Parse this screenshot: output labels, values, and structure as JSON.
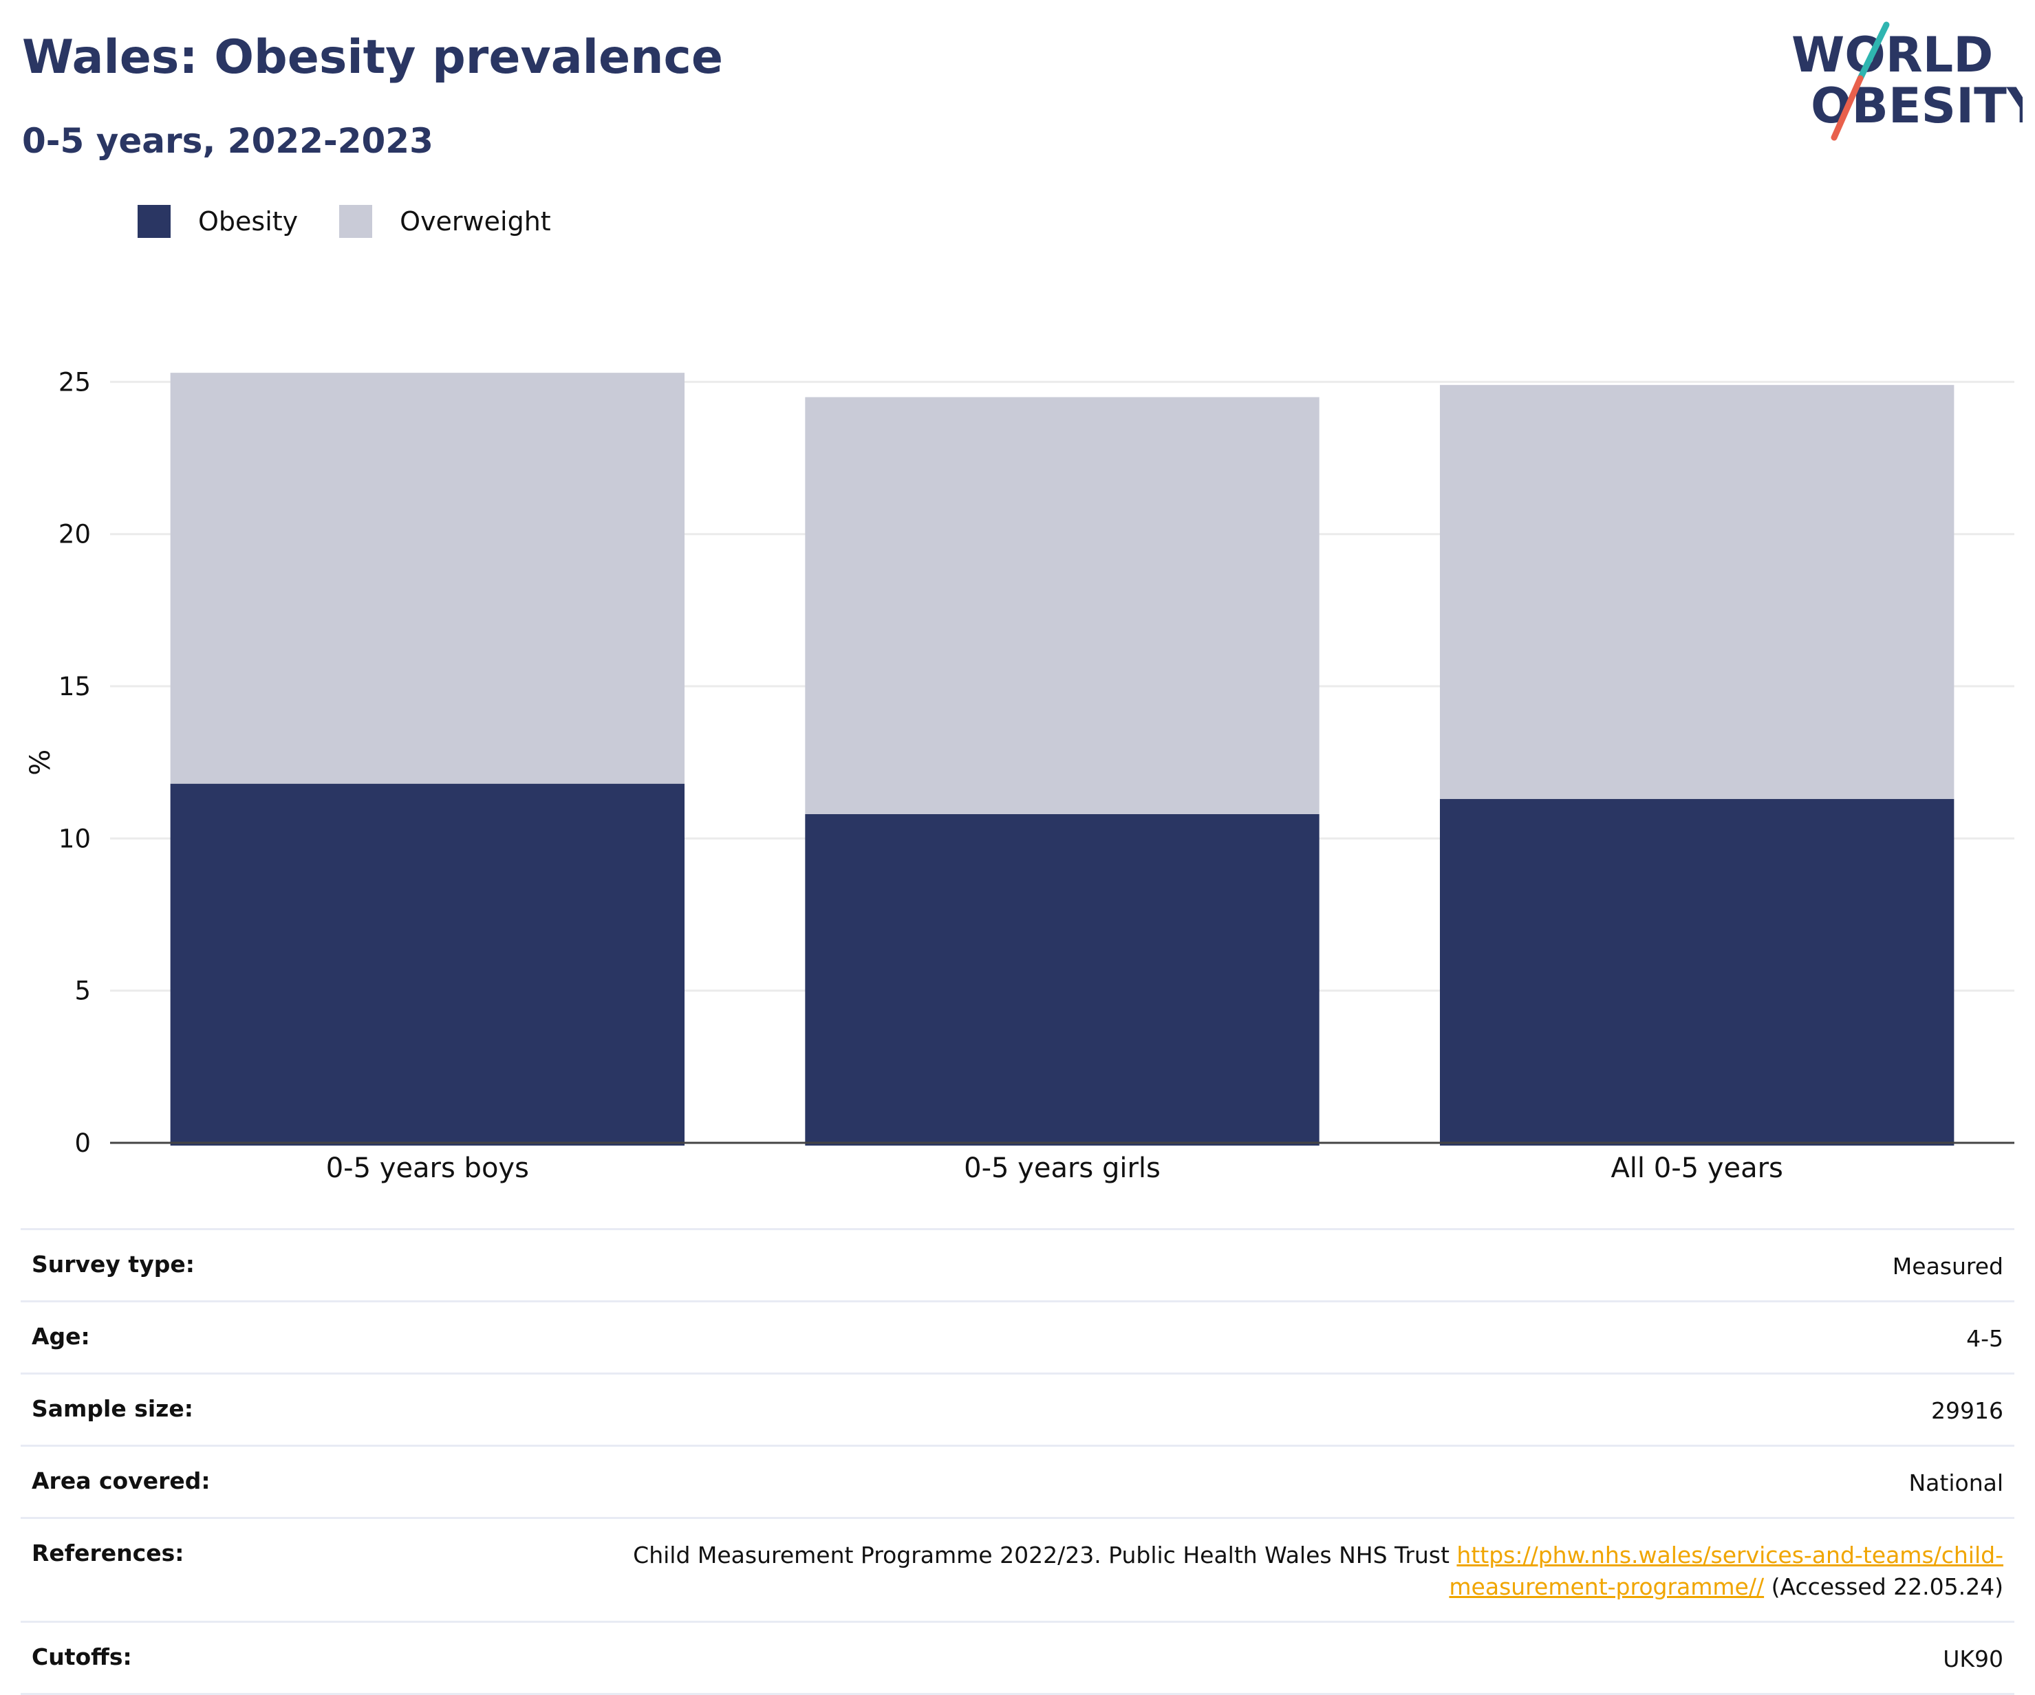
{
  "header": {
    "title": "Wales: Obesity prevalence",
    "subtitle": "0-5 years, 2022-2023"
  },
  "logo": {
    "line1": "WORLD",
    "line2": "OBESITY",
    "colors": {
      "text": "#2a3663",
      "slash_top": "#2fb5b0",
      "slash_bottom": "#e8604c"
    }
  },
  "legend": [
    {
      "label": "Obesity",
      "color": "#2a3663"
    },
    {
      "label": "Overweight",
      "color": "#c9cbd7"
    }
  ],
  "chart_data": {
    "type": "bar",
    "stacked": true,
    "categories": [
      "0-5 years boys",
      "0-5 years girls",
      "All 0-5 years"
    ],
    "series": [
      {
        "name": "Obesity",
        "values": [
          11.8,
          10.8,
          11.3
        ],
        "color": "#2a3663"
      },
      {
        "name": "Overweight",
        "values": [
          13.5,
          13.7,
          13.6
        ],
        "color": "#c9cbd7"
      }
    ],
    "ylabel": "%",
    "ylim": [
      0,
      25.8
    ],
    "yticks": [
      0,
      5,
      10,
      15,
      20,
      25
    ],
    "grid": true,
    "legend_position": "top-left"
  },
  "info": [
    {
      "label": "Survey type:",
      "value": "Measured"
    },
    {
      "label": "Age:",
      "value": "4-5"
    },
    {
      "label": "Sample size:",
      "value": "29916"
    },
    {
      "label": "Area covered:",
      "value": "National"
    },
    {
      "label": "References:",
      "value_prefix": "Child Measurement Programme 2022/23. Public Health Wales NHS Trust ",
      "link": "https://phw.nhs.wales/services-and-teams/child-measurement-programme//",
      "value_suffix": " (Accessed 22.05.24)"
    },
    {
      "label": "Cutoffs:",
      "value": "UK90"
    }
  ]
}
